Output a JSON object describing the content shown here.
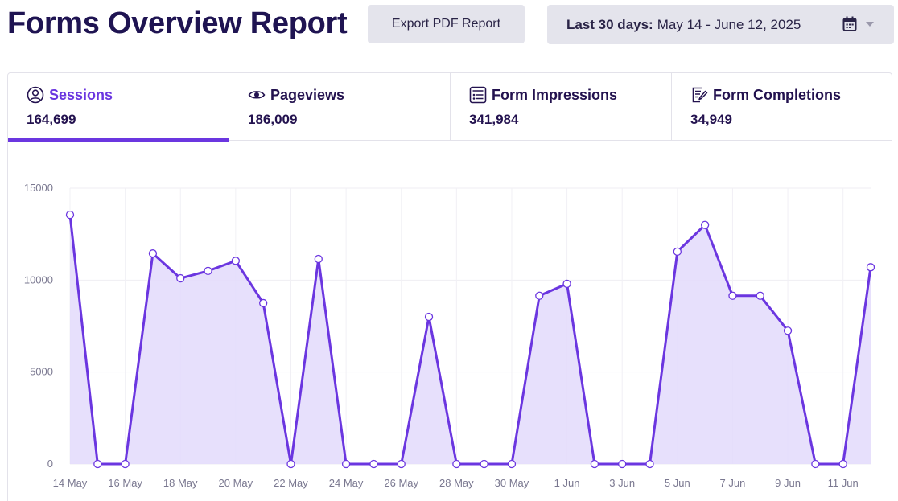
{
  "header": {
    "title": "Forms Overview Report",
    "export_label": "Export PDF Report",
    "date_range_label": "Last 30 days:",
    "date_range_value": "May 14 - June 12, 2025",
    "calendar_icon": "calendar-icon",
    "caret_icon": "chevron-down-icon"
  },
  "tabs": [
    {
      "label": "Sessions",
      "value": "164,699",
      "icon": "user-circle-icon",
      "active": true
    },
    {
      "label": "Pageviews",
      "value": "186,009",
      "icon": "eye-icon",
      "active": false
    },
    {
      "label": "Form Impressions",
      "value": "341,984",
      "icon": "form-list-icon",
      "active": false
    },
    {
      "label": "Form Completions",
      "value": "34,949",
      "icon": "form-edit-icon",
      "active": false
    }
  ],
  "colors": {
    "accent": "#6b36e0",
    "fill": "#e3dafb",
    "title": "#1f1452"
  },
  "chart_data": {
    "type": "area",
    "title": "",
    "xlabel": "",
    "ylabel": "",
    "ylim": [
      0,
      15000
    ],
    "yticks": [
      0,
      5000,
      10000,
      15000
    ],
    "grid": true,
    "x": [
      "14 May",
      "15 May",
      "16 May",
      "17 May",
      "18 May",
      "19 May",
      "20 May",
      "21 May",
      "22 May",
      "23 May",
      "24 May",
      "25 May",
      "26 May",
      "27 May",
      "28 May",
      "29 May",
      "30 May",
      "31 May",
      "1 Jun",
      "2 Jun",
      "3 Jun",
      "4 Jun",
      "5 Jun",
      "6 Jun",
      "7 Jun",
      "8 Jun",
      "9 Jun",
      "10 Jun",
      "11 Jun",
      "12 Jun"
    ],
    "xtick_labels": [
      "14 May",
      "16 May",
      "18 May",
      "20 May",
      "22 May",
      "24 May",
      "26 May",
      "28 May",
      "30 May",
      "1 Jun",
      "3 Jun",
      "5 Jun",
      "7 Jun",
      "9 Jun",
      "11 Jun"
    ],
    "series": [
      {
        "values": [
          13550,
          0,
          0,
          11450,
          10100,
          10500,
          11050,
          8750,
          0,
          11150,
          0,
          0,
          0,
          8000,
          0,
          0,
          0,
          9150,
          9800,
          0,
          0,
          0,
          11550,
          13000,
          9150,
          9150,
          7250,
          0,
          0,
          10700
        ]
      }
    ]
  }
}
